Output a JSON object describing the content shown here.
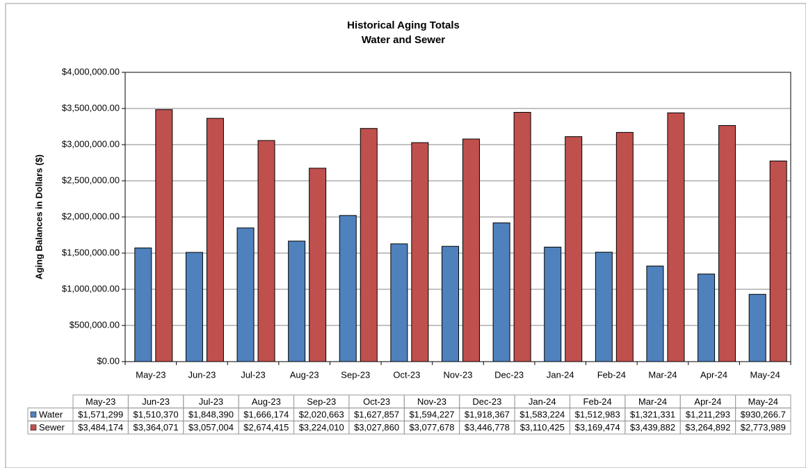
{
  "chart_data": {
    "type": "bar",
    "title": "Historical Aging Totals",
    "subtitle": "Water and Sewer",
    "y_label": "Aging Balances in Dollars ($)",
    "categories": [
      "May-23",
      "Jun-23",
      "Jul-23",
      "Aug-23",
      "Sep-23",
      "Oct-23",
      "Nov-23",
      "Dec-23",
      "Jan-24",
      "Feb-24",
      "Mar-24",
      "Apr-24",
      "May-24"
    ],
    "series": [
      {
        "name": "Water",
        "color": "#4f81bd",
        "values": [
          1571299,
          1510370,
          1848390,
          1666174,
          2020663,
          1627857,
          1594227,
          1918367,
          1583224,
          1512983,
          1321331,
          1211293,
          930266.7
        ],
        "value_labels": [
          "$1,571,299",
          "$1,510,370",
          "$1,848,390",
          "$1,666,174",
          "$2,020,663",
          "$1,627,857",
          "$1,594,227",
          "$1,918,367",
          "$1,583,224",
          "$1,512,983",
          "$1,321,331",
          "$1,211,293",
          "$930,266.7"
        ]
      },
      {
        "name": "Sewer",
        "color": "#c0504d",
        "values": [
          3484174,
          3364071,
          3057004,
          2674415,
          3224010,
          3027860,
          3077678,
          3446778,
          3110425,
          3169474,
          3439882,
          3264892,
          2773989
        ],
        "value_labels": [
          "$3,484,174",
          "$3,364,071",
          "$3,057,004",
          "$2,674,415",
          "$3,224,010",
          "$3,027,860",
          "$3,077,678",
          "$3,446,778",
          "$3,110,425",
          "$3,169,474",
          "$3,439,882",
          "$3,264,892",
          "$2,773,989"
        ]
      }
    ],
    "ylim": [
      0,
      4000000
    ],
    "yticks": [
      {
        "value": 0,
        "label": "$0.00"
      },
      {
        "value": 500000,
        "label": "$500,000.00"
      },
      {
        "value": 1000000,
        "label": "$1,000,000.00"
      },
      {
        "value": 1500000,
        "label": "$1,500,000.00"
      },
      {
        "value": 2000000,
        "label": "$2,000,000.00"
      },
      {
        "value": 2500000,
        "label": "$2,500,000.00"
      },
      {
        "value": 3000000,
        "label": "$3,000,000.00"
      },
      {
        "value": 3500000,
        "label": "$3,500,000.00"
      },
      {
        "value": 4000000,
        "label": "$4,000,000.00"
      }
    ],
    "grid": true,
    "data_table": true
  }
}
